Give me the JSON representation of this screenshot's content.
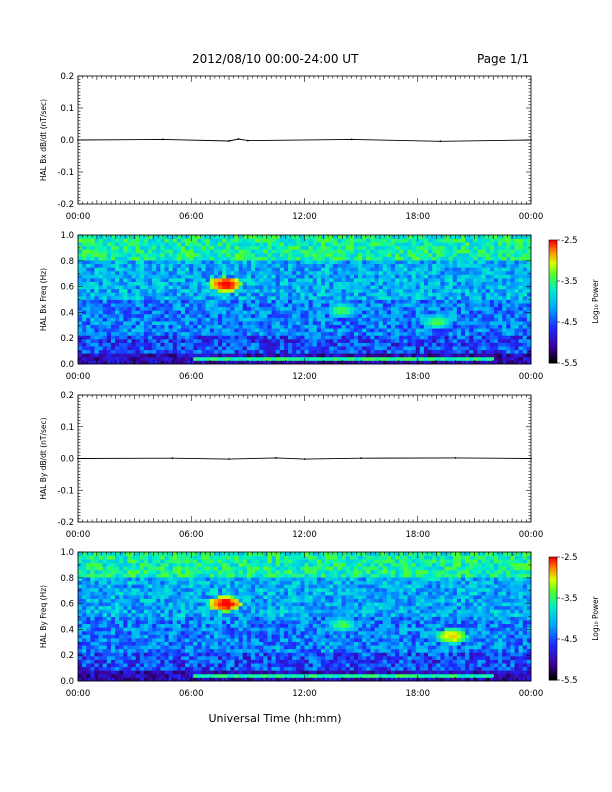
{
  "header": {
    "title": "2012/08/10  00:00-24:00 UT",
    "page": "Page 1/1"
  },
  "xaxis": {
    "label": "Universal Time (hh:mm)",
    "ticks": [
      "00:00",
      "06:00",
      "12:00",
      "18:00",
      "00:00"
    ],
    "range_hours": [
      0,
      24
    ]
  },
  "colorbar": {
    "label": "Log₁₀ Power",
    "ticks": [
      "-2.5",
      "-3.5",
      "-4.5",
      "-5.5"
    ],
    "range": [
      -5.5,
      -2.5
    ]
  },
  "colors": {
    "trace": "#000000",
    "background_spectrum": "#1f78ff"
  },
  "chart_data": [
    {
      "type": "line",
      "ylabel": "HAL Bx dB/dt (nT/sec)",
      "yticks": [
        "0.2",
        "0.1",
        "0.0",
        "-0.1",
        "-0.2"
      ],
      "ylim": [
        -0.2,
        0.2
      ],
      "xlim": [
        0,
        24
      ],
      "series": [
        {
          "x": [
            0,
            4.5,
            8,
            8.5,
            9,
            14.5,
            19.2,
            24
          ],
          "y": [
            0,
            0.002,
            -0.003,
            0.003,
            -0.002,
            0.002,
            -0.004,
            0
          ]
        }
      ]
    },
    {
      "type": "heatmap",
      "ylabel": "HAL Bx Freq (Hz)",
      "yticks": [
        "1.0",
        "0.8",
        "0.6",
        "0.4",
        "0.2",
        "0.0"
      ],
      "ylim": [
        0,
        1.0
      ],
      "xlim": [
        0,
        24
      ],
      "features": [
        {
          "t": 7.8,
          "f": 0.62,
          "power": -2.5
        },
        {
          "t": 14.0,
          "f": 0.42,
          "power": -3.5
        },
        {
          "t": 19.0,
          "f": 0.33,
          "power": -3.5
        }
      ]
    },
    {
      "type": "line",
      "ylabel": "HAL By dB/dt (nT/sec)",
      "yticks": [
        "0.2",
        "0.1",
        "0.0",
        "-0.1",
        "-0.2"
      ],
      "ylim": [
        -0.2,
        0.2
      ],
      "xlim": [
        0,
        24
      ],
      "series": [
        {
          "x": [
            0,
            5,
            8,
            10.5,
            12,
            15,
            20,
            24
          ],
          "y": [
            0,
            0.001,
            -0.002,
            0.002,
            -0.002,
            0.001,
            0.002,
            0
          ]
        }
      ]
    },
    {
      "type": "heatmap",
      "ylabel": "HAL By Freq (Hz)",
      "yticks": [
        "1.0",
        "0.8",
        "0.6",
        "0.4",
        "0.2",
        "0.0"
      ],
      "ylim": [
        0,
        1.0
      ],
      "xlim": [
        0,
        24
      ],
      "features": [
        {
          "t": 7.8,
          "f": 0.6,
          "power": -2.5
        },
        {
          "t": 14.0,
          "f": 0.44,
          "power": -3.5
        },
        {
          "t": 19.8,
          "f": 0.35,
          "power": -3.0
        }
      ]
    }
  ]
}
